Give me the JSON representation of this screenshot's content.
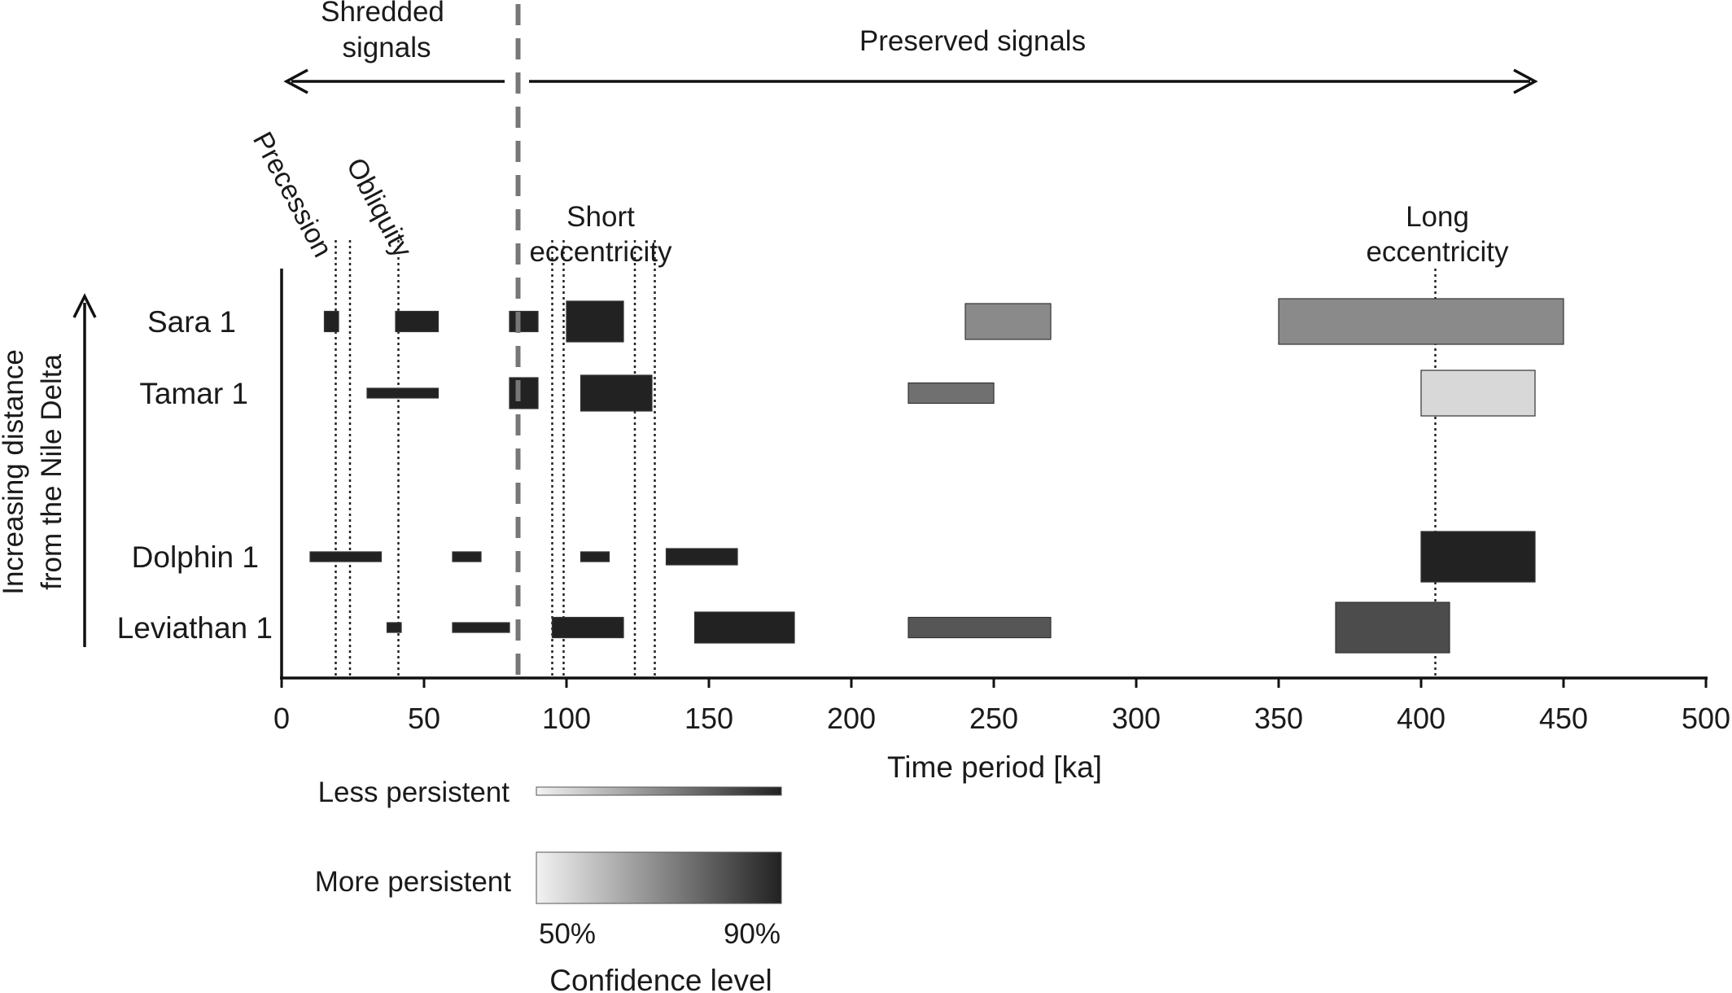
{
  "chart_data": {
    "type": "bar",
    "subtype": "horizontal-range",
    "xlabel": "Time period [ka]",
    "ylabel_line1": "Increasing distance",
    "ylabel_line2": "from the Nile Delta",
    "xlim": [
      0,
      500
    ],
    "xticks": [
      0,
      50,
      100,
      150,
      200,
      250,
      300,
      350,
      400,
      450,
      500
    ],
    "wells": [
      "Sara 1",
      "Tamar 1",
      "Dolphin 1",
      "Leviathan 1"
    ],
    "boundary_x": 83,
    "regions": {
      "shredded_line1": "Shredded",
      "shredded_line2": "signals",
      "preserved": "Preserved signals"
    },
    "cycle_labels": {
      "precession": "Precession",
      "obliquity": "Obliquity",
      "short_ecc_line1": "Short",
      "short_ecc_line2": "eccentricity",
      "long_ecc_line1": "Long",
      "long_ecc_line2": "eccentricity"
    },
    "reference_lines": [
      19,
      24,
      41,
      95,
      99,
      124,
      131,
      405
    ],
    "series": [
      {
        "well": "Sara 1",
        "bars": [
          {
            "start": 15,
            "end": 20,
            "persistence": "less",
            "confidence": 90
          },
          {
            "start": 40,
            "end": 55,
            "persistence": "less",
            "confidence": 90
          },
          {
            "start": 80,
            "end": 90,
            "persistence": "less",
            "confidence": 90
          },
          {
            "start": 100,
            "end": 120,
            "persistence": "more",
            "confidence": 90
          },
          {
            "start": 240,
            "end": 270,
            "persistence": "more",
            "confidence": 70
          },
          {
            "start": 350,
            "end": 450,
            "persistence": "more",
            "confidence": 70
          }
        ]
      },
      {
        "well": "Tamar 1",
        "bars": [
          {
            "start": 30,
            "end": 55,
            "persistence": "less",
            "confidence": 90
          },
          {
            "start": 80,
            "end": 90,
            "persistence": "more",
            "confidence": 90
          },
          {
            "start": 105,
            "end": 130,
            "persistence": "more",
            "confidence": 90
          },
          {
            "start": 220,
            "end": 250,
            "persistence": "less",
            "confidence": 75
          },
          {
            "start": 400,
            "end": 440,
            "persistence": "more",
            "confidence": 55
          }
        ]
      },
      {
        "well": "Dolphin 1",
        "bars": [
          {
            "start": 10,
            "end": 35,
            "persistence": "less",
            "confidence": 90
          },
          {
            "start": 60,
            "end": 70,
            "persistence": "less",
            "confidence": 90
          },
          {
            "start": 105,
            "end": 115,
            "persistence": "less",
            "confidence": 90
          },
          {
            "start": 135,
            "end": 160,
            "persistence": "less",
            "confidence": 90
          },
          {
            "start": 400,
            "end": 440,
            "persistence": "more",
            "confidence": 90
          }
        ]
      },
      {
        "well": "Leviathan 1",
        "bars": [
          {
            "start": 37,
            "end": 42,
            "persistence": "less",
            "confidence": 90
          },
          {
            "start": 60,
            "end": 80,
            "persistence": "less",
            "confidence": 90
          },
          {
            "start": 95,
            "end": 120,
            "persistence": "less",
            "confidence": 90
          },
          {
            "start": 145,
            "end": 180,
            "persistence": "more",
            "confidence": 90
          },
          {
            "start": 220,
            "end": 270,
            "persistence": "less",
            "confidence": 80
          },
          {
            "start": 370,
            "end": 410,
            "persistence": "more",
            "confidence": 82
          }
        ]
      }
    ],
    "legend": {
      "less_label": "Less persistent",
      "more_label": "More persistent",
      "scale_min": "50%",
      "scale_max": "90%",
      "scale_title": "Confidence level",
      "color_light": "#f2f2f2",
      "color_dark": "#222222"
    }
  }
}
